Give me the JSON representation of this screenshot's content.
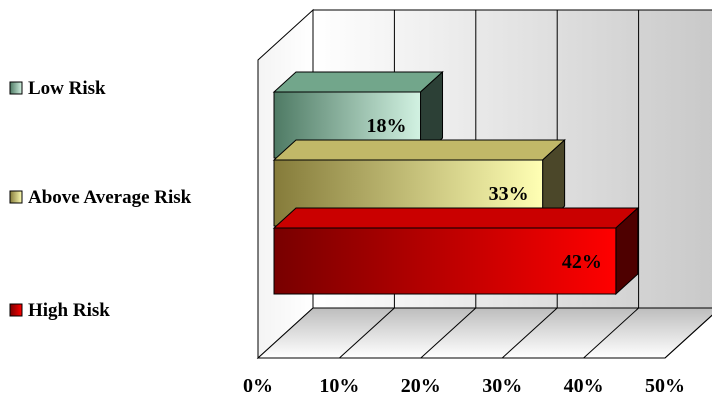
{
  "chart_data": {
    "type": "bar",
    "orientation": "horizontal",
    "style": "3d",
    "categories": [
      "Low Risk",
      "Above Average Risk",
      "High Risk"
    ],
    "values": [
      18,
      33,
      42
    ],
    "data_labels": [
      "18%",
      "33%",
      "42%"
    ],
    "colors": [
      "#7fb89a",
      "#d6cc74",
      "#e00000"
    ],
    "xlim": [
      0,
      50
    ],
    "x_ticks": [
      0,
      10,
      20,
      30,
      40,
      50
    ],
    "x_tick_labels": [
      "0%",
      "10%",
      "20%",
      "30%",
      "40%",
      "50%"
    ],
    "grid": true,
    "legend_position": "left",
    "title": "",
    "xlabel": "",
    "ylabel": ""
  }
}
